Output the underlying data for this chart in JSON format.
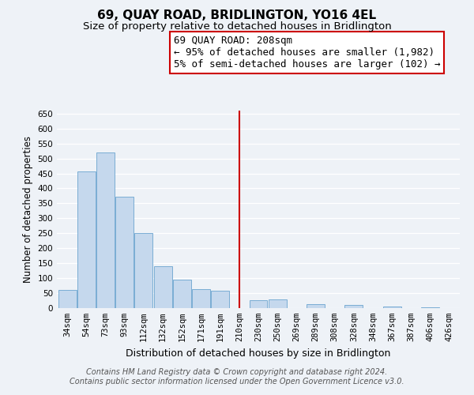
{
  "title": "69, QUAY ROAD, BRIDLINGTON, YO16 4EL",
  "subtitle": "Size of property relative to detached houses in Bridlington",
  "xlabel": "Distribution of detached houses by size in Bridlington",
  "ylabel": "Number of detached properties",
  "footer_line1": "Contains HM Land Registry data © Crown copyright and database right 2024.",
  "footer_line2": "Contains public sector information licensed under the Open Government Licence v3.0.",
  "bar_labels": [
    "34sqm",
    "54sqm",
    "73sqm",
    "93sqm",
    "112sqm",
    "132sqm",
    "152sqm",
    "171sqm",
    "191sqm",
    "210sqm",
    "230sqm",
    "250sqm",
    "269sqm",
    "289sqm",
    "308sqm",
    "328sqm",
    "348sqm",
    "367sqm",
    "387sqm",
    "406sqm",
    "426sqm"
  ],
  "bar_values": [
    62,
    457,
    520,
    371,
    250,
    140,
    95,
    63,
    58,
    0,
    26,
    29,
    0,
    13,
    0,
    10,
    0,
    5,
    0,
    3,
    0
  ],
  "bar_color": "#c5d8ed",
  "bar_edge_color": "#7aadd4",
  "ylim": [
    0,
    660
  ],
  "yticks": [
    0,
    50,
    100,
    150,
    200,
    250,
    300,
    350,
    400,
    450,
    500,
    550,
    600,
    650
  ],
  "vline_index": 9,
  "vline_color": "#cc0000",
  "annotation_title": "69 QUAY ROAD: 208sqm",
  "annotation_line1": "← 95% of detached houses are smaller (1,982)",
  "annotation_line2": "5% of semi-detached houses are larger (102) →",
  "bg_color": "#eef2f7",
  "plot_bg_color": "#eef2f7",
  "grid_color": "#ffffff",
  "title_fontsize": 11,
  "subtitle_fontsize": 9.5,
  "annotation_fontsize": 9,
  "tick_fontsize": 7.5,
  "xlabel_fontsize": 9,
  "ylabel_fontsize": 8.5,
  "footer_fontsize": 7
}
